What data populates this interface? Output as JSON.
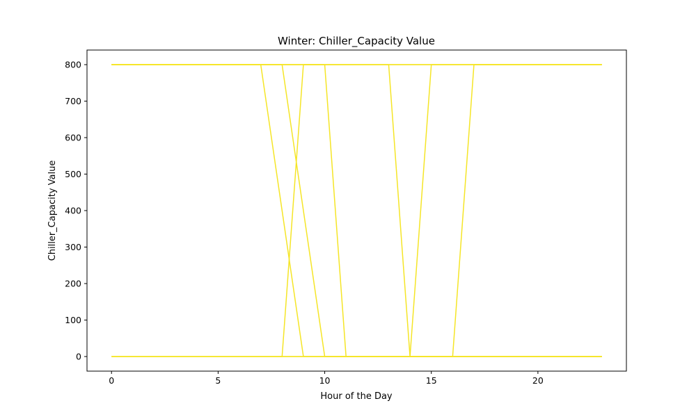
{
  "chart_data": {
    "type": "line",
    "title": "Winter: Chiller_Capacity Value",
    "xlabel": "Hour of the Day",
    "ylabel": "Chiller_Capacity Value",
    "xlim": [
      -1.15,
      24.15
    ],
    "ylim": [
      -40,
      840
    ],
    "xticks": [
      0,
      5,
      10,
      15,
      20
    ],
    "yticks": [
      0,
      100,
      200,
      300,
      400,
      500,
      600,
      700,
      800
    ],
    "grid": false,
    "legend": "none",
    "series_color": "#f5e526",
    "series": [
      {
        "x": [
          0,
          23
        ],
        "values": [
          800,
          800
        ]
      },
      {
        "x": [
          0,
          7,
          9,
          23
        ],
        "values": [
          800,
          800,
          0,
          0
        ]
      },
      {
        "x": [
          0,
          8,
          10,
          23
        ],
        "values": [
          800,
          800,
          0,
          0
        ]
      },
      {
        "x": [
          0,
          8,
          9,
          23
        ],
        "values": [
          0,
          0,
          800,
          800
        ]
      },
      {
        "x": [
          0,
          10,
          11,
          23
        ],
        "values": [
          800,
          800,
          0,
          0
        ]
      },
      {
        "x": [
          0,
          13,
          14,
          15,
          23
        ],
        "values": [
          800,
          800,
          0,
          800,
          800
        ]
      },
      {
        "x": [
          0,
          16,
          17,
          23
        ],
        "values": [
          0,
          0,
          800,
          800
        ]
      },
      {
        "x": [
          0,
          23
        ],
        "values": [
          0,
          0
        ]
      }
    ]
  }
}
